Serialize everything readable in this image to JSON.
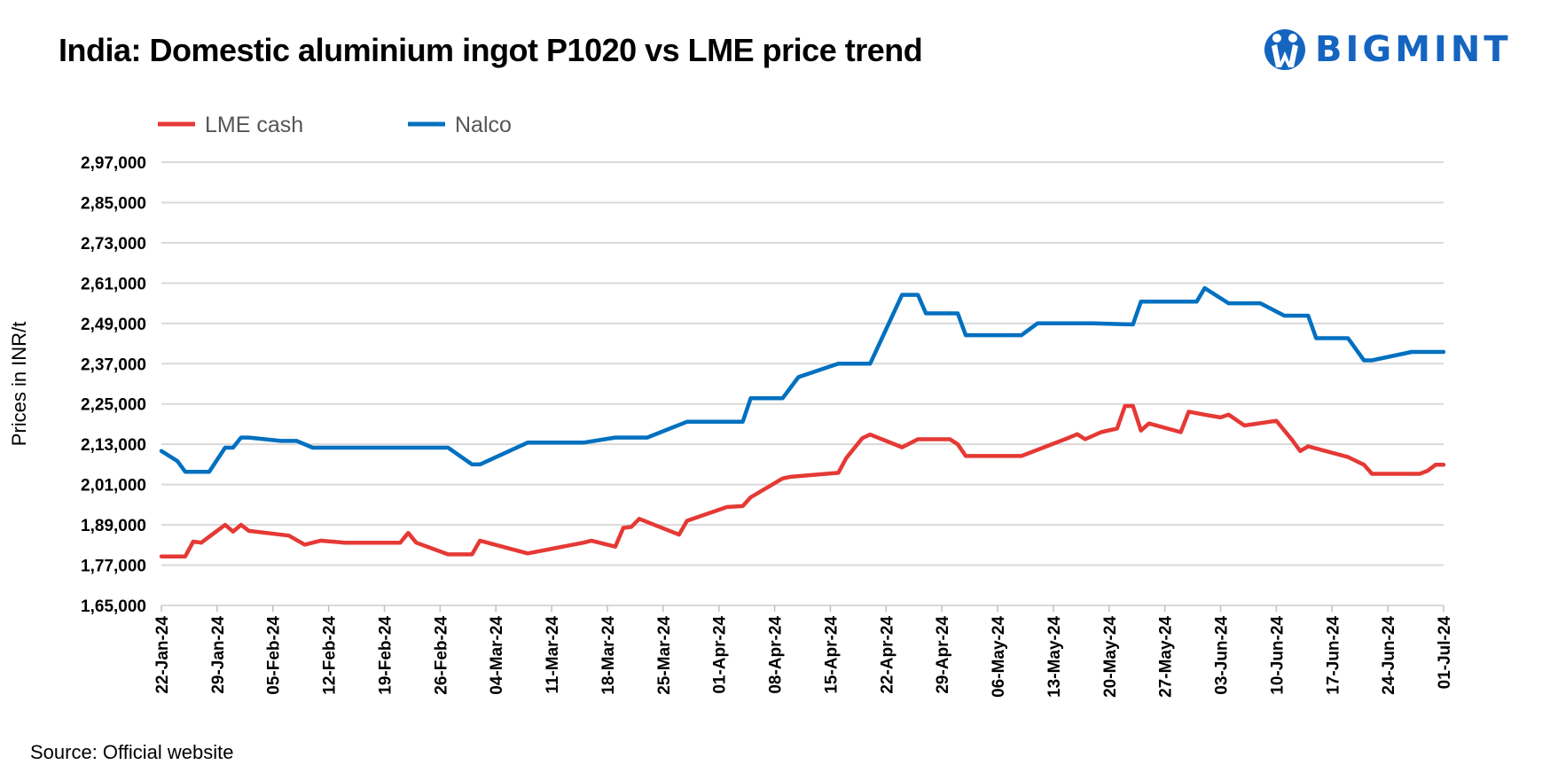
{
  "title": "India: Domestic aluminium ingot P1020 vs LME price trend",
  "logo": {
    "text": "BIGMINT",
    "color": "#1565c0"
  },
  "source": "Source: Official website",
  "chart_data": {
    "type": "line",
    "title": "India: Domestic aluminium ingot P1020 vs LME price trend",
    "xlabel": "",
    "ylabel": "Prices in INR/t",
    "ylim": [
      165000,
      297000
    ],
    "yticks": [
      "1,65,000",
      "1,77,000",
      "1,89,000",
      "2,01,000",
      "2,13,000",
      "2,25,000",
      "2,37,000",
      "2,49,000",
      "2,61,000",
      "2,73,000",
      "2,85,000",
      "2,97,000"
    ],
    "ytick_values": [
      165000,
      177000,
      189000,
      201000,
      213000,
      225000,
      237000,
      249000,
      261000,
      273000,
      285000,
      297000
    ],
    "xlim": [
      "2024-01-22",
      "2024-07-01"
    ],
    "xticks": [
      "22-Jan-24",
      "29-Jan-24",
      "05-Feb-24",
      "12-Feb-24",
      "19-Feb-24",
      "26-Feb-24",
      "04-Mar-24",
      "11-Mar-24",
      "18-Mar-24",
      "25-Mar-24",
      "01-Apr-24",
      "08-Apr-24",
      "15-Apr-24",
      "22-Apr-24",
      "29-Apr-24",
      "06-May-24",
      "13-May-24",
      "20-May-24",
      "27-May-24",
      "03-Jun-24",
      "10-Jun-24",
      "17-Jun-24",
      "24-Jun-24",
      "01-Jul-24"
    ],
    "xtick_dates": [
      "2024-01-22",
      "2024-01-29",
      "2024-02-05",
      "2024-02-12",
      "2024-02-19",
      "2024-02-26",
      "2024-03-04",
      "2024-03-11",
      "2024-03-18",
      "2024-03-25",
      "2024-04-01",
      "2024-04-08",
      "2024-04-15",
      "2024-04-22",
      "2024-04-29",
      "2024-05-06",
      "2024-05-13",
      "2024-05-20",
      "2024-05-27",
      "2024-06-03",
      "2024-06-10",
      "2024-06-17",
      "2024-06-24",
      "2024-07-01"
    ],
    "grid": true,
    "legend": "top-left",
    "series": [
      {
        "name": "LME cash",
        "color": "#e53935",
        "points": [
          [
            "2024-01-22",
            179600
          ],
          [
            "2024-01-25",
            179600
          ],
          [
            "2024-01-26",
            184000
          ],
          [
            "2024-01-27",
            183700
          ],
          [
            "2024-01-30",
            189000
          ],
          [
            "2024-01-31",
            187000
          ],
          [
            "2024-02-01",
            189000
          ],
          [
            "2024-02-02",
            187200
          ],
          [
            "2024-02-07",
            185800
          ],
          [
            "2024-02-09",
            183100
          ],
          [
            "2024-02-11",
            184300
          ],
          [
            "2024-02-14",
            183700
          ],
          [
            "2024-02-21",
            183700
          ],
          [
            "2024-02-22",
            186600
          ],
          [
            "2024-02-23",
            183700
          ],
          [
            "2024-02-27",
            180200
          ],
          [
            "2024-03-01",
            180200
          ],
          [
            "2024-03-02",
            184300
          ],
          [
            "2024-03-08",
            180500
          ],
          [
            "2024-03-15",
            183700
          ],
          [
            "2024-03-16",
            184300
          ],
          [
            "2024-03-19",
            182500
          ],
          [
            "2024-03-20",
            188100
          ],
          [
            "2024-03-21",
            188400
          ],
          [
            "2024-03-22",
            190800
          ],
          [
            "2024-03-27",
            186100
          ],
          [
            "2024-03-28",
            190200
          ],
          [
            "2024-04-02",
            194300
          ],
          [
            "2024-04-04",
            194600
          ],
          [
            "2024-04-05",
            197200
          ],
          [
            "2024-04-09",
            202800
          ],
          [
            "2024-04-10",
            203300
          ],
          [
            "2024-04-16",
            204500
          ],
          [
            "2024-04-17",
            208900
          ],
          [
            "2024-04-19",
            214800
          ],
          [
            "2024-04-20",
            215900
          ],
          [
            "2024-04-24",
            212100
          ],
          [
            "2024-04-26",
            214500
          ],
          [
            "2024-04-30",
            214500
          ],
          [
            "2024-05-01",
            213000
          ],
          [
            "2024-05-02",
            209500
          ],
          [
            "2024-05-09",
            209500
          ],
          [
            "2024-05-15",
            215000
          ],
          [
            "2024-05-16",
            216000
          ],
          [
            "2024-05-17",
            214500
          ],
          [
            "2024-05-19",
            216600
          ],
          [
            "2024-05-21",
            217700
          ],
          [
            "2024-05-22",
            224400
          ],
          [
            "2024-05-23",
            224400
          ],
          [
            "2024-05-24",
            217100
          ],
          [
            "2024-05-25",
            219200
          ],
          [
            "2024-05-29",
            216600
          ],
          [
            "2024-05-30",
            222700
          ],
          [
            "2024-06-01",
            221800
          ],
          [
            "2024-06-03",
            221000
          ],
          [
            "2024-06-04",
            221800
          ],
          [
            "2024-06-06",
            218600
          ],
          [
            "2024-06-10",
            220000
          ],
          [
            "2024-06-12",
            214200
          ],
          [
            "2024-06-13",
            211000
          ],
          [
            "2024-06-14",
            212400
          ],
          [
            "2024-06-19",
            209200
          ],
          [
            "2024-06-21",
            206900
          ],
          [
            "2024-06-22",
            204200
          ],
          [
            "2024-06-28",
            204200
          ],
          [
            "2024-06-29",
            205100
          ],
          [
            "2024-06-30",
            206900
          ],
          [
            "2024-07-01",
            206900
          ]
        ]
      },
      {
        "name": "Nalco",
        "color": "#0070c0",
        "points": [
          [
            "2024-01-22",
            211000
          ],
          [
            "2024-01-24",
            208000
          ],
          [
            "2024-01-25",
            204800
          ],
          [
            "2024-01-28",
            204800
          ],
          [
            "2024-01-30",
            212000
          ],
          [
            "2024-01-31",
            212000
          ],
          [
            "2024-02-01",
            215000
          ],
          [
            "2024-02-02",
            215000
          ],
          [
            "2024-02-06",
            214000
          ],
          [
            "2024-02-08",
            214000
          ],
          [
            "2024-02-10",
            212000
          ],
          [
            "2024-02-27",
            212000
          ],
          [
            "2024-03-01",
            207000
          ],
          [
            "2024-03-02",
            207000
          ],
          [
            "2024-03-08",
            213500
          ],
          [
            "2024-03-15",
            213500
          ],
          [
            "2024-03-19",
            215000
          ],
          [
            "2024-03-23",
            215000
          ],
          [
            "2024-03-28",
            219700
          ],
          [
            "2024-04-04",
            219700
          ],
          [
            "2024-04-05",
            226700
          ],
          [
            "2024-04-09",
            226700
          ],
          [
            "2024-04-11",
            233000
          ],
          [
            "2024-04-16",
            237000
          ],
          [
            "2024-04-20",
            237000
          ],
          [
            "2024-04-24",
            257500
          ],
          [
            "2024-04-26",
            257500
          ],
          [
            "2024-04-27",
            252000
          ],
          [
            "2024-05-01",
            252000
          ],
          [
            "2024-05-02",
            245500
          ],
          [
            "2024-05-09",
            245500
          ],
          [
            "2024-05-11",
            249000
          ],
          [
            "2024-05-18",
            249000
          ],
          [
            "2024-05-23",
            248700
          ],
          [
            "2024-05-24",
            255500
          ],
          [
            "2024-05-31",
            255500
          ],
          [
            "2024-06-01",
            259500
          ],
          [
            "2024-06-04",
            255000
          ],
          [
            "2024-06-08",
            255000
          ],
          [
            "2024-06-11",
            251300
          ],
          [
            "2024-06-14",
            251300
          ],
          [
            "2024-06-15",
            244600
          ],
          [
            "2024-06-19",
            244600
          ],
          [
            "2024-06-21",
            238000
          ],
          [
            "2024-06-22",
            238000
          ],
          [
            "2024-06-27",
            240500
          ],
          [
            "2024-07-01",
            240500
          ]
        ]
      }
    ]
  }
}
